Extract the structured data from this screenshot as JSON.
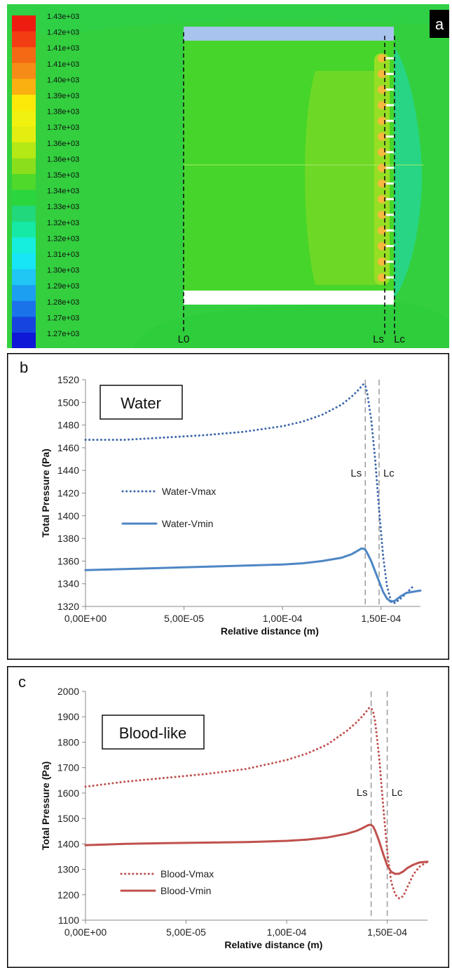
{
  "panel_a": {
    "tag": "a",
    "colorbar_labels": [
      "1.43e+03",
      "1.42e+03",
      "1.41e+03",
      "1.41e+03",
      "1.40e+03",
      "1.39e+03",
      "1.38e+03",
      "1.37e+03",
      "1.36e+03",
      "1.36e+03",
      "1.35e+03",
      "1.34e+03",
      "1.33e+03",
      "1.32e+03",
      "1.32e+03",
      "1.31e+03",
      "1.30e+03",
      "1.29e+03",
      "1.28e+03",
      "1.27e+03",
      "1.27e+03"
    ],
    "colorbar_colors": [
      "#ee1c10",
      "#f23d12",
      "#f46914",
      "#f68c16",
      "#fab011",
      "#fde909",
      "#f1f10f",
      "#e3ee10",
      "#b5e915",
      "#8bde1c",
      "#4fd92b",
      "#2bd53e",
      "#22d87c",
      "#16e8a6",
      "#16efde",
      "#17e6f6",
      "#20c6f4",
      "#1c9ff1",
      "#1b73ea",
      "#1545de",
      "#0e18d6"
    ],
    "markers": {
      "l0": "L0",
      "ls": "Ls",
      "lc": "Lc"
    }
  },
  "chart_data": [
    {
      "type": "line",
      "panel": "b",
      "title": "Water",
      "xlabel": "Relative distance (m)",
      "ylabel": "Total Pressure (Pa)",
      "xlim": [
        0,
        0.00017
      ],
      "ylim": [
        1320,
        1520
      ],
      "xticks": [
        0,
        5e-05,
        0.0001,
        0.00015
      ],
      "xtick_labels": [
        "0,00E+00",
        "5,00E-05",
        "1,00E-04",
        "1,50E-04"
      ],
      "yticks": [
        1320,
        1340,
        1360,
        1380,
        1400,
        1420,
        1440,
        1460,
        1480,
        1500,
        1520
      ],
      "ytick_labels": [
        "1320",
        "1340",
        "1360",
        "1380",
        "1400",
        "1420",
        "1440",
        "1460",
        "1480",
        "1500",
        "1520"
      ],
      "vlines": [
        {
          "x": 0.000142,
          "label": "Ls"
        },
        {
          "x": 0.000149,
          "label": "Lc"
        }
      ],
      "legend": "left",
      "series": [
        {
          "name": "Water-Vmax",
          "style": "dotted",
          "color": "#3d68ac",
          "x": [
            0,
            2e-05,
            4e-05,
            6e-05,
            8e-05,
            0.0001,
            0.00011,
            0.00012,
            0.00013,
            0.000135,
            0.000138,
            0.00014,
            0.000141,
            0.000142,
            0.000143,
            0.000145,
            0.000147,
            0.000149,
            0.000151,
            0.000153,
            0.000155,
            0.000157,
            0.00016,
            0.000163,
            0.000167
          ],
          "y": [
            1467,
            1467,
            1469,
            1471,
            1474,
            1479,
            1483,
            1489,
            1498,
            1505,
            1510,
            1514,
            1516,
            1515,
            1508,
            1485,
            1450,
            1405,
            1365,
            1338,
            1325,
            1323,
            1327,
            1332,
            1339
          ]
        },
        {
          "name": "Water-Vmin",
          "style": "solid",
          "color": "#4d86c4",
          "x": [
            0,
            2e-05,
            4e-05,
            6e-05,
            8e-05,
            0.0001,
            0.00011,
            0.00012,
            0.00013,
            0.000135,
            0.000138,
            0.00014,
            0.000141,
            0.000142,
            0.000143,
            0.000145,
            0.000147,
            0.000149,
            0.000151,
            0.000153,
            0.000155,
            0.000157,
            0.00016,
            0.000163,
            0.00017
          ],
          "y": [
            1352,
            1353,
            1354,
            1355,
            1356,
            1357,
            1358,
            1360,
            1363,
            1366,
            1369,
            1371,
            1371,
            1370,
            1367,
            1360,
            1351,
            1342,
            1333,
            1327,
            1324,
            1325,
            1329,
            1332,
            1334
          ]
        }
      ]
    },
    {
      "type": "line",
      "panel": "c",
      "title": "Blood-like",
      "xlabel": "Relative distance (m)",
      "ylabel": "Total Pressure (Pa)",
      "xlim": [
        0,
        0.00017
      ],
      "ylim": [
        1100,
        2000
      ],
      "xticks": [
        0,
        5e-05,
        0.0001,
        0.00015
      ],
      "xtick_labels": [
        "0,00E+00",
        "5,00E-05",
        "1,00E-04",
        "1,50E-04"
      ],
      "yticks": [
        1100,
        1200,
        1300,
        1400,
        1500,
        1600,
        1700,
        1800,
        1900,
        2000
      ],
      "ytick_labels": [
        "1100",
        "1200",
        "1300",
        "1400",
        "1500",
        "1600",
        "1700",
        "1800",
        "1900",
        "2000"
      ],
      "vlines": [
        {
          "x": 0.000142,
          "label": "Ls"
        },
        {
          "x": 0.00015,
          "label": "Lc"
        }
      ],
      "legend": "bottom-left",
      "series": [
        {
          "name": "Blood-Vmax",
          "style": "dotted",
          "color": "#c0504d",
          "x": [
            0,
            2e-05,
            4e-05,
            6e-05,
            8e-05,
            0.0001,
            0.00011,
            0.00012,
            0.00013,
            0.000135,
            0.000138,
            0.00014,
            0.000141,
            0.000142,
            0.000143,
            0.000144,
            0.000146,
            0.000148,
            0.00015,
            0.000152,
            0.000154,
            0.000156,
            0.000158,
            0.00016,
            0.000163,
            0.000166,
            0.00017
          ],
          "y": [
            1625,
            1645,
            1660,
            1675,
            1695,
            1730,
            1755,
            1790,
            1845,
            1880,
            1905,
            1925,
            1935,
            1935,
            1920,
            1880,
            1740,
            1550,
            1370,
            1250,
            1200,
            1185,
            1195,
            1230,
            1280,
            1310,
            1330
          ]
        },
        {
          "name": "Blood-Vmin",
          "style": "solid",
          "color": "#c0504d",
          "x": [
            0,
            2e-05,
            4e-05,
            6e-05,
            8e-05,
            0.0001,
            0.00011,
            0.00012,
            0.00013,
            0.000135,
            0.000138,
            0.00014,
            0.000141,
            0.000142,
            0.000143,
            0.000144,
            0.000146,
            0.000148,
            0.00015,
            0.000152,
            0.000154,
            0.000156,
            0.000158,
            0.00016,
            0.000163,
            0.000166,
            0.00017
          ],
          "y": [
            1395,
            1400,
            1403,
            1405,
            1407,
            1412,
            1417,
            1425,
            1440,
            1452,
            1463,
            1472,
            1475,
            1475,
            1468,
            1452,
            1410,
            1360,
            1315,
            1290,
            1282,
            1283,
            1292,
            1305,
            1318,
            1327,
            1330
          ]
        }
      ]
    }
  ]
}
